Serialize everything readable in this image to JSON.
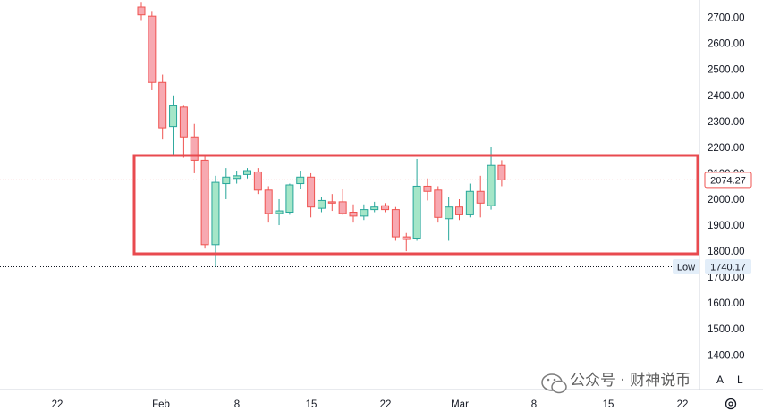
{
  "chart_data": {
    "type": "candlestick",
    "ylim": [
      1370,
      2740
    ],
    "y_ticks": [
      1400,
      1500,
      1600,
      1700,
      1800,
      1900,
      2000,
      2100,
      2200,
      2300,
      2400,
      2500,
      2600,
      2700
    ],
    "x_tick_labels": [
      "22",
      "Feb",
      "8",
      "15",
      "22",
      "Mar",
      "8",
      "15",
      "22"
    ],
    "colors": {
      "up": "#a5e6c8",
      "up_border": "#26a69a",
      "down": "#f7a9b1",
      "down_border": "#ef5350",
      "box": "#e84a4f"
    },
    "last_price_label": "2074.27",
    "last_price": 2074.27,
    "low_label": "Low",
    "low_value_label": "1740.17",
    "low_value": 1740.17,
    "candles": [
      {
        "o": 2740,
        "h": 2760,
        "l": 2690,
        "c": 2710
      },
      {
        "o": 2705,
        "h": 2725,
        "l": 2420,
        "c": 2450
      },
      {
        "o": 2450,
        "h": 2480,
        "l": 2230,
        "c": 2275
      },
      {
        "o": 2280,
        "h": 2400,
        "l": 2170,
        "c": 2360
      },
      {
        "o": 2355,
        "h": 2360,
        "l": 2160,
        "c": 2240
      },
      {
        "o": 2240,
        "h": 2290,
        "l": 2100,
        "c": 2150
      },
      {
        "o": 2150,
        "h": 2170,
        "l": 1810,
        "c": 1825
      },
      {
        "o": 1825,
        "h": 2090,
        "l": 1740,
        "c": 2065
      },
      {
        "o": 2060,
        "h": 2120,
        "l": 2000,
        "c": 2085
      },
      {
        "o": 2080,
        "h": 2110,
        "l": 2060,
        "c": 2090
      },
      {
        "o": 2095,
        "h": 2120,
        "l": 2080,
        "c": 2110
      },
      {
        "o": 2105,
        "h": 2120,
        "l": 2020,
        "c": 2035
      },
      {
        "o": 2035,
        "h": 2050,
        "l": 1910,
        "c": 1945
      },
      {
        "o": 1945,
        "h": 2000,
        "l": 1900,
        "c": 1955
      },
      {
        "o": 1950,
        "h": 2060,
        "l": 1940,
        "c": 2055
      },
      {
        "o": 2060,
        "h": 2110,
        "l": 2040,
        "c": 2085
      },
      {
        "o": 2085,
        "h": 2100,
        "l": 1930,
        "c": 1970
      },
      {
        "o": 1965,
        "h": 2010,
        "l": 1950,
        "c": 1995
      },
      {
        "o": 1990,
        "h": 2020,
        "l": 1955,
        "c": 1985
      },
      {
        "o": 1990,
        "h": 2040,
        "l": 1940,
        "c": 1945
      },
      {
        "o": 1950,
        "h": 1980,
        "l": 1910,
        "c": 1935
      },
      {
        "o": 1935,
        "h": 1980,
        "l": 1920,
        "c": 1960
      },
      {
        "o": 1960,
        "h": 1990,
        "l": 1950,
        "c": 1970
      },
      {
        "o": 1975,
        "h": 1985,
        "l": 1950,
        "c": 1960
      },
      {
        "o": 1960,
        "h": 1970,
        "l": 1840,
        "c": 1855
      },
      {
        "o": 1855,
        "h": 1870,
        "l": 1800,
        "c": 1845
      },
      {
        "o": 1850,
        "h": 2155,
        "l": 1840,
        "c": 2050
      },
      {
        "o": 2050,
        "h": 2080,
        "l": 1995,
        "c": 2030
      },
      {
        "o": 2035,
        "h": 2050,
        "l": 1910,
        "c": 1930
      },
      {
        "o": 1925,
        "h": 2010,
        "l": 1840,
        "c": 1970
      },
      {
        "o": 1970,
        "h": 2000,
        "l": 1920,
        "c": 1940
      },
      {
        "o": 1940,
        "h": 2060,
        "l": 1930,
        "c": 2030
      },
      {
        "o": 2030,
        "h": 2090,
        "l": 1930,
        "c": 1985
      },
      {
        "o": 1975,
        "h": 2200,
        "l": 1960,
        "c": 2130
      },
      {
        "o": 2130,
        "h": 2150,
        "l": 2050,
        "c": 2074.27
      }
    ]
  },
  "watermark_text": "公众号 · 财神说币",
  "controls": {
    "auto_label": "A",
    "log_label": "L"
  }
}
